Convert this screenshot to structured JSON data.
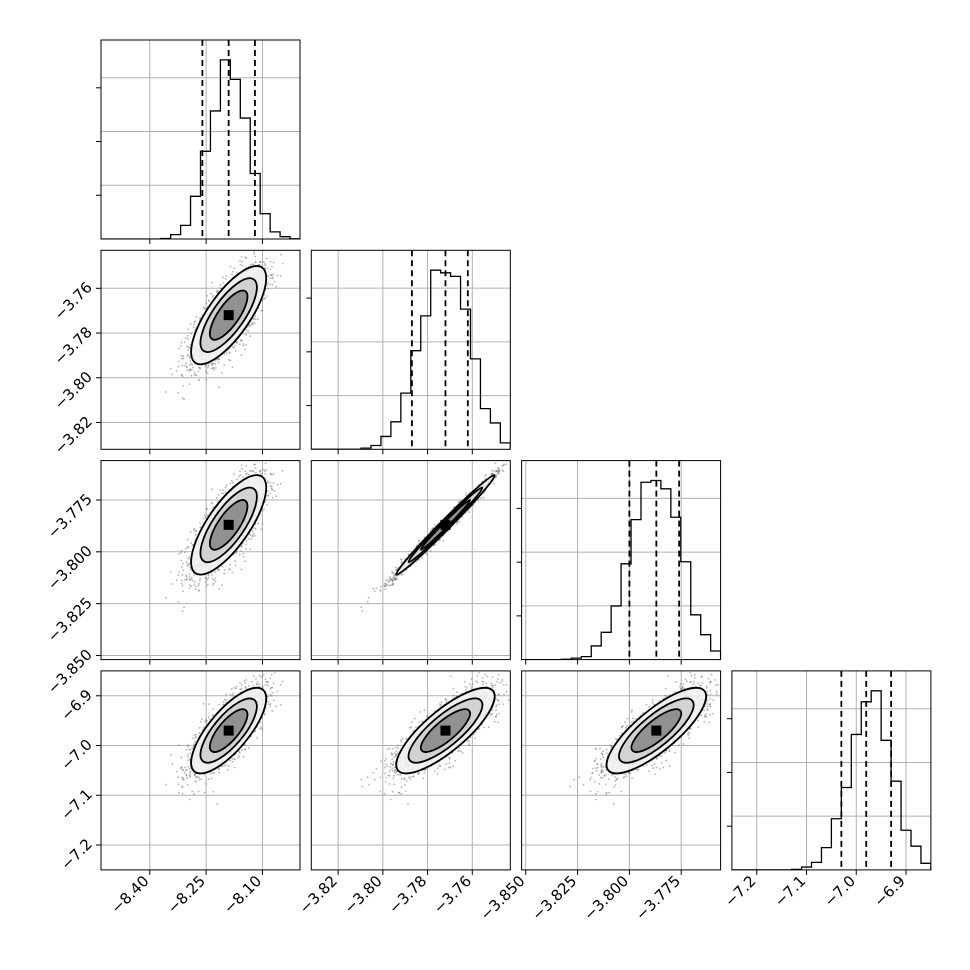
{
  "chart_data": {
    "type": "corner",
    "params": [
      {
        "ticks": [
          -8.4,
          -8.25,
          -8.1
        ],
        "tick_labels": [
          "−8.40",
          "−8.25",
          "−8.10"
        ],
        "mean": -8.19,
        "sd": 0.05,
        "range": [
          -8.53,
          -8.0
        ],
        "quantiles": [
          -8.26,
          -8.19,
          -8.12
        ]
      },
      {
        "ticks": [
          -3.82,
          -3.8,
          -3.78,
          -3.76
        ],
        "tick_labels": [
          "−3.82",
          "−3.80",
          "−3.78",
          "−3.76"
        ],
        "mean": -3.772,
        "sd": 0.011,
        "range": [
          -3.832,
          -3.743
        ],
        "quantiles": [
          -3.787,
          -3.772,
          -3.762
        ]
      },
      {
        "ticks": [
          -3.85,
          -3.825,
          -3.8,
          -3.775
        ],
        "tick_labels": [
          "−3.850",
          "−3.825",
          "−3.800",
          "−3.775"
        ],
        "mean": -3.787,
        "sd": 0.012,
        "range": [
          -3.852,
          -3.756
        ],
        "quantiles": [
          -3.8,
          -3.787,
          -3.776
        ]
      },
      {
        "ticks": [
          -7.2,
          -7.1,
          -7.0,
          -6.9
        ],
        "tick_labels": [
          "−7.2",
          "−7.1",
          "−7.0",
          "−6.9"
        ],
        "mean": -6.97,
        "sd": 0.043,
        "range": [
          -7.25,
          -6.85
        ],
        "quantiles": [
          -7.03,
          -6.98,
          -6.93
        ]
      }
    ],
    "correlations": [
      [
        1.0,
        0.75,
        0.75,
        0.75
      ],
      [
        0.75,
        1.0,
        0.99,
        0.8
      ],
      [
        0.75,
        0.99,
        1.0,
        0.8
      ],
      [
        0.75,
        0.8,
        0.8,
        1.0
      ]
    ],
    "histogram_bins": 20,
    "grid": true,
    "quantile_lines": "dashed",
    "contour_levels": 3
  }
}
